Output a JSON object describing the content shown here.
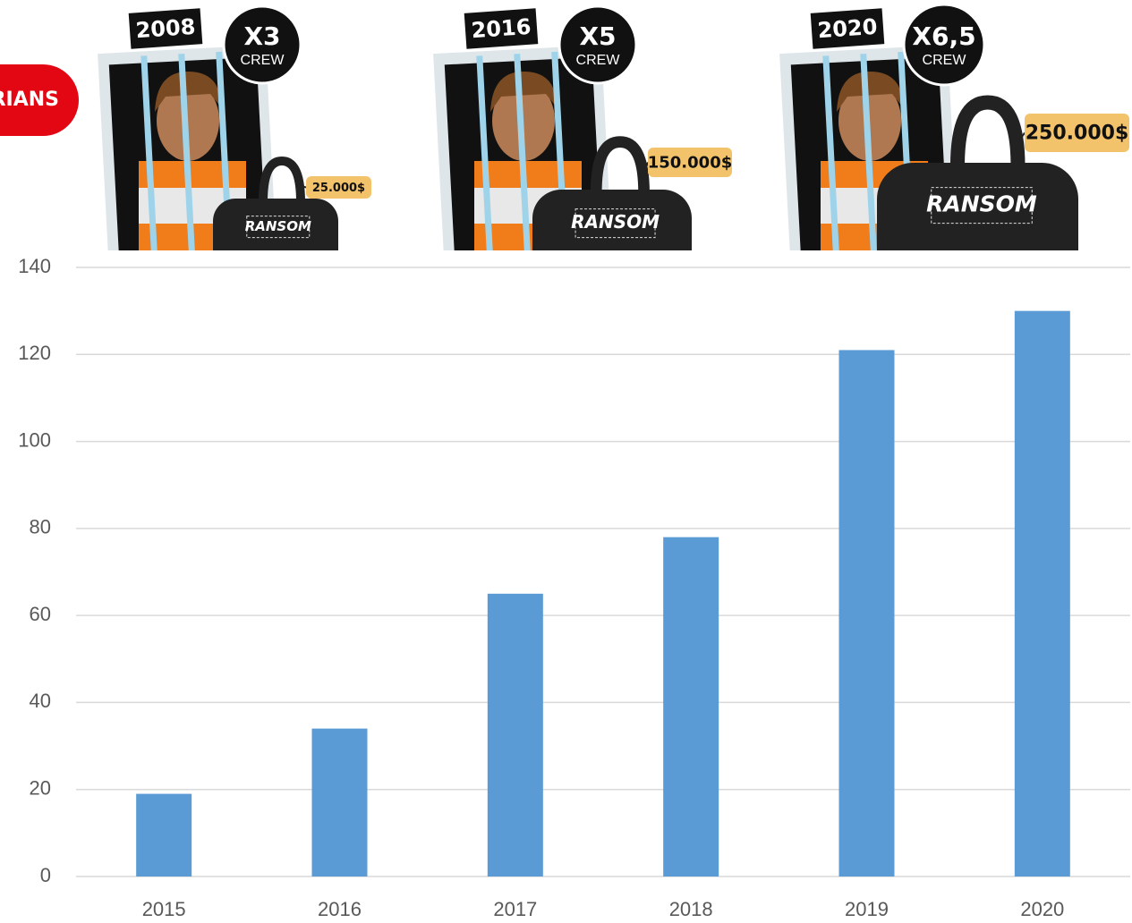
{
  "badge": "RIANS",
  "panels": [
    {
      "year": "2008",
      "multiplier": "X3",
      "crew": "CREW",
      "ransom": "25.000$",
      "bag_label": "RANSOM"
    },
    {
      "year": "2016",
      "multiplier": "X5",
      "crew": "CREW",
      "ransom": "150.000$",
      "bag_label": "RANSOM"
    },
    {
      "year": "2020",
      "multiplier": "X6,5",
      "crew": "CREW",
      "ransom": "250.000$",
      "bag_label": "RANSOM"
    }
  ],
  "chart_data": {
    "type": "bar",
    "categories": [
      "2015",
      "2016",
      "2017",
      "2018",
      "2019",
      "2020"
    ],
    "values": [
      19,
      34,
      65,
      78,
      121,
      130
    ],
    "color": "#5b9bd5",
    "ylim": [
      0,
      140
    ],
    "yticks": [
      0,
      20,
      40,
      60,
      80,
      100,
      120,
      140
    ],
    "grid": true
  }
}
